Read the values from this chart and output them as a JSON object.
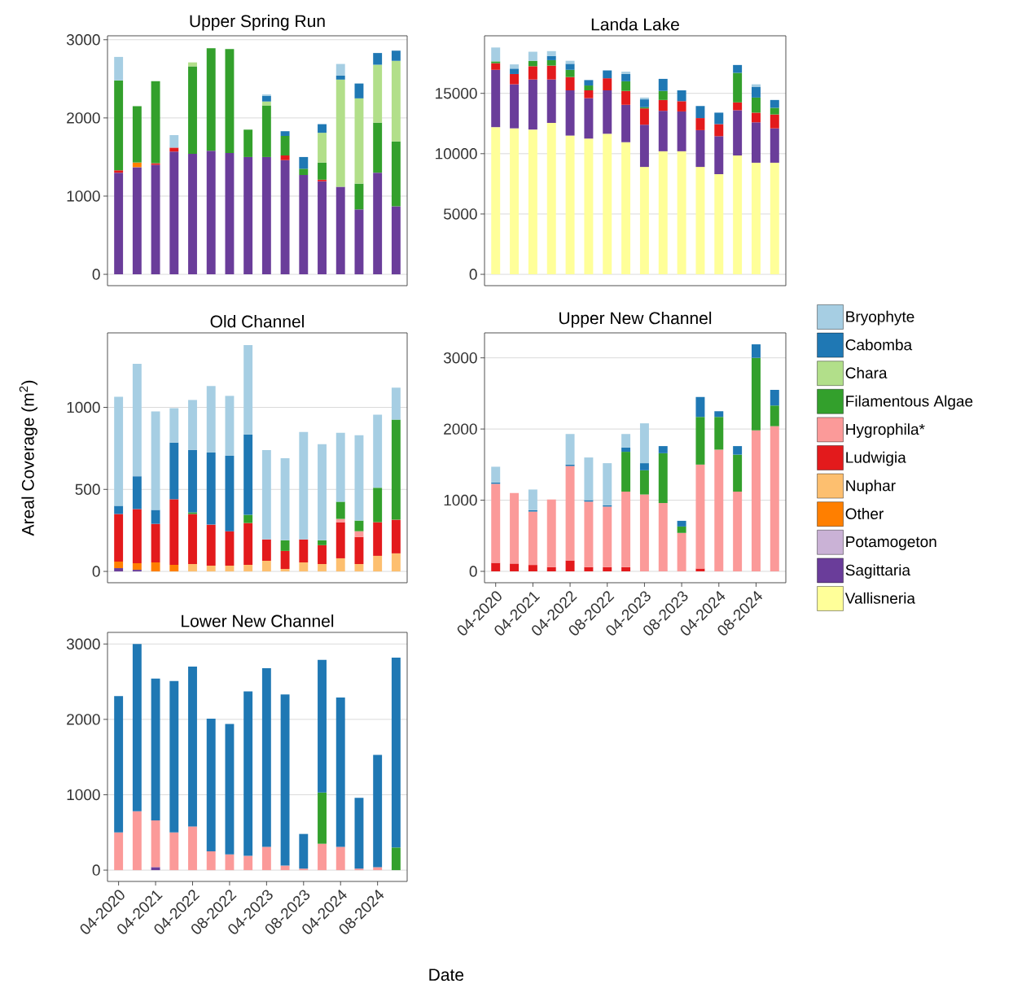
{
  "chart_data": [
    {
      "type": "bar",
      "title": "Upper Spring Run",
      "stacked": true,
      "grid": "y",
      "tick_labels": "y",
      "categories": [
        null,
        null,
        null,
        null,
        null,
        null,
        null,
        null,
        null,
        null,
        null,
        null,
        null,
        null,
        null,
        null
      ],
      "ylim": [
        -145,
        3050
      ],
      "yticks": [
        0,
        1000,
        2000,
        3000
      ],
      "series": [
        {
          "color": "#6a3d9a",
          "values": [
            1300,
            1370,
            1400,
            1570,
            1540,
            1580,
            1550,
            1500,
            1500,
            1460,
            1270,
            1190,
            1120,
            830,
            1300,
            870
          ]
        },
        {
          "color": "#ff7f00",
          "values": [
            null,
            60,
            null,
            null,
            null,
            null,
            null,
            null,
            null,
            null,
            null,
            null,
            null,
            null,
            null,
            null
          ]
        },
        {
          "color": "#e31a1c",
          "values": [
            30,
            null,
            20,
            50,
            null,
            null,
            null,
            null,
            null,
            60,
            null,
            20,
            null,
            null,
            null,
            null
          ]
        },
        {
          "color": "#33a02c",
          "values": [
            1150,
            720,
            1050,
            null,
            1120,
            1310,
            1330,
            350,
            660,
            250,
            80,
            220,
            null,
            330,
            640,
            830
          ]
        },
        {
          "color": "#b2df8a",
          "values": [
            null,
            null,
            null,
            null,
            50,
            null,
            null,
            null,
            50,
            null,
            null,
            380,
            1370,
            1090,
            740,
            1030
          ]
        },
        {
          "color": "#1f78b4",
          "values": [
            null,
            null,
            null,
            null,
            null,
            null,
            null,
            null,
            70,
            60,
            150,
            110,
            50,
            190,
            150,
            130
          ]
        },
        {
          "color": "#a6cee3",
          "values": [
            300,
            null,
            null,
            160,
            null,
            null,
            null,
            null,
            20,
            null,
            null,
            null,
            150,
            null,
            null,
            null
          ]
        }
      ]
    },
    {
      "type": "bar",
      "title": "Landa Lake",
      "stacked": true,
      "grid": "y",
      "tick_labels": "y",
      "categories": [
        null,
        null,
        null,
        null,
        null,
        null,
        null,
        null,
        null,
        null,
        null,
        null,
        null,
        null,
        null,
        null
      ],
      "ylim": [
        -940,
        19770
      ],
      "yticks": [
        0,
        5000,
        10000,
        15000
      ],
      "series": [
        {
          "color": "#ffff99",
          "values": [
            12200,
            12100,
            12000,
            12550,
            11500,
            11250,
            11650,
            10950,
            8900,
            10200,
            10200,
            8900,
            8300,
            9850,
            9250,
            9250
          ]
        },
        {
          "color": "#6a3d9a",
          "values": [
            4750,
            3650,
            4150,
            3600,
            3750,
            3350,
            3600,
            3100,
            3500,
            3350,
            3300,
            3050,
            3150,
            3750,
            3350,
            2850
          ]
        },
        {
          "color": "#e31a1c",
          "values": [
            550,
            850,
            1100,
            1150,
            1100,
            650,
            1000,
            1150,
            1350,
            900,
            850,
            1000,
            1000,
            650,
            800,
            1150
          ]
        },
        {
          "color": "#33a02c",
          "values": [
            150,
            null,
            450,
            450,
            600,
            400,
            null,
            800,
            100,
            750,
            null,
            null,
            null,
            2450,
            1250,
            550
          ]
        },
        {
          "color": "#1f78b4",
          "values": [
            null,
            450,
            null,
            350,
            500,
            450,
            650,
            600,
            650,
            1000,
            900,
            1000,
            950,
            650,
            900,
            650
          ]
        },
        {
          "color": "#a6cee3",
          "values": [
            1150,
            350,
            750,
            400,
            250,
            null,
            null,
            200,
            150,
            null,
            null,
            null,
            null,
            null,
            200,
            null
          ]
        }
      ]
    },
    {
      "type": "bar",
      "title": "Old Channel",
      "ylabel": "Areal Coverage (m$^{2}$)",
      "stacked": true,
      "grid": "y",
      "tick_labels": "y",
      "categories": [
        null,
        null,
        null,
        null,
        null,
        null,
        null,
        null,
        null,
        null,
        null,
        null,
        null,
        null,
        null,
        null
      ],
      "ylim": [
        -69,
        1454
      ],
      "yticks": [
        0,
        500,
        1000
      ],
      "series": [
        {
          "color": "#6a3d9a",
          "values": [
            20,
            10,
            null,
            null,
            null,
            null,
            null,
            null,
            null,
            null,
            null,
            null,
            null,
            null,
            null,
            null
          ]
        },
        {
          "color": "#ff7f00",
          "values": [
            40,
            40,
            55,
            40,
            null,
            null,
            null,
            null,
            null,
            null,
            null,
            null,
            null,
            null,
            null,
            null
          ]
        },
        {
          "color": "#fdbf6f",
          "values": [
            null,
            null,
            null,
            null,
            45,
            35,
            35,
            40,
            65,
            15,
            55,
            45,
            80,
            45,
            95,
            110
          ]
        },
        {
          "color": "#e31a1c",
          "values": [
            290,
            330,
            235,
            400,
            305,
            250,
            210,
            255,
            130,
            110,
            140,
            115,
            220,
            165,
            205,
            205
          ]
        },
        {
          "color": "#fb9a99",
          "values": [
            null,
            null,
            null,
            null,
            null,
            null,
            null,
            null,
            null,
            null,
            null,
            null,
            20,
            35,
            null,
            null
          ]
        },
        {
          "color": "#33a02c",
          "values": [
            null,
            null,
            null,
            null,
            10,
            null,
            null,
            50,
            null,
            65,
            null,
            30,
            105,
            65,
            210,
            610
          ]
        },
        {
          "color": "#1f78b4",
          "values": [
            50,
            200,
            85,
            345,
            380,
            440,
            460,
            490,
            null,
            null,
            null,
            null,
            null,
            null,
            null,
            null
          ]
        },
        {
          "color": "#a6cee3",
          "values": [
            665,
            685,
            600,
            210,
            305,
            405,
            365,
            545,
            545,
            500,
            655,
            585,
            420,
            520,
            445,
            195
          ]
        }
      ]
    },
    {
      "type": "bar",
      "title": "Upper New Channel",
      "stacked": true,
      "grid": "y",
      "legend": "right",
      "categories": [
        "04-2020",
        null,
        "04-2021",
        null,
        "04-2022",
        null,
        "08-2022",
        null,
        "04-2023",
        null,
        "08-2023",
        null,
        "04-2024",
        null,
        "08-2024",
        null
      ],
      "ylim": [
        -160,
        3351
      ],
      "yticks": [
        0,
        1000,
        2000,
        3000
      ],
      "series": [
        {
          "name": "Vallisneria",
          "color": "#ffff99",
          "values": [
            null,
            null,
            null,
            null,
            null,
            null,
            null,
            null,
            null,
            null,
            null,
            null,
            null,
            null,
            null,
            null
          ]
        },
        {
          "name": "Sagittaria",
          "color": "#6a3d9a",
          "values": [
            null,
            null,
            null,
            null,
            null,
            null,
            null,
            null,
            null,
            null,
            null,
            null,
            null,
            null,
            null,
            null
          ]
        },
        {
          "name": "Potamogeton",
          "color": "#cab2d6",
          "values": [
            null,
            null,
            null,
            null,
            null,
            null,
            null,
            null,
            null,
            null,
            null,
            null,
            null,
            null,
            null,
            null
          ]
        },
        {
          "name": "Other",
          "color": "#ff7f00",
          "values": [
            null,
            null,
            null,
            null,
            null,
            null,
            null,
            null,
            null,
            null,
            null,
            null,
            null,
            null,
            null,
            null
          ]
        },
        {
          "name": "Nuphar",
          "color": "#fdbf6f",
          "values": [
            null,
            null,
            null,
            null,
            null,
            null,
            null,
            null,
            null,
            null,
            null,
            null,
            null,
            null,
            null,
            null
          ]
        },
        {
          "name": "Ludwigia",
          "color": "#e31a1c",
          "values": [
            120,
            110,
            90,
            60,
            150,
            60,
            60,
            60,
            null,
            null,
            null,
            40,
            null,
            null,
            null,
            null
          ]
        },
        {
          "name": "Hygrophila*",
          "color": "#fb9a99",
          "values": [
            1110,
            990,
            750,
            950,
            1330,
            920,
            850,
            1060,
            1080,
            960,
            540,
            1460,
            1710,
            1120,
            1980,
            2040
          ]
        },
        {
          "name": "Filamentous Algae",
          "color": "#33a02c",
          "values": [
            null,
            null,
            null,
            null,
            null,
            null,
            null,
            560,
            340,
            700,
            90,
            670,
            460,
            520,
            1020,
            290
          ]
        },
        {
          "name": "Chara",
          "color": "#b2df8a",
          "values": [
            null,
            null,
            null,
            null,
            null,
            null,
            null,
            null,
            null,
            null,
            null,
            null,
            null,
            null,
            null,
            null
          ]
        },
        {
          "name": "Cabomba",
          "color": "#1f78b4",
          "values": [
            20,
            null,
            20,
            null,
            20,
            20,
            20,
            60,
            100,
            100,
            80,
            280,
            80,
            120,
            190,
            220
          ]
        },
        {
          "name": "Bryophyte",
          "color": "#a6cee3",
          "values": [
            220,
            null,
            290,
            null,
            430,
            600,
            590,
            190,
            560,
            null,
            null,
            null,
            null,
            null,
            null,
            null
          ]
        }
      ]
    },
    {
      "type": "bar",
      "title": "Lower New Channel",
      "xlabel": "Date",
      "stacked": true,
      "grid": "y",
      "categories": [
        "04-2020",
        null,
        "04-2021",
        null,
        "04-2022",
        null,
        "08-2022",
        null,
        "04-2023",
        null,
        "08-2023",
        null,
        "04-2024",
        null,
        "08-2024",
        null
      ],
      "ylim": [
        -150,
        3154
      ],
      "yticks": [
        0,
        1000,
        2000,
        3000
      ],
      "series": [
        {
          "color": "#6a3d9a",
          "values": [
            null,
            null,
            40,
            null,
            null,
            null,
            null,
            null,
            null,
            null,
            null,
            null,
            null,
            null,
            null,
            null
          ]
        },
        {
          "color": "#fb9a99",
          "values": [
            500,
            780,
            620,
            500,
            580,
            250,
            210,
            190,
            310,
            60,
            20,
            350,
            310,
            20,
            40,
            null
          ]
        },
        {
          "color": "#33a02c",
          "values": [
            null,
            null,
            null,
            null,
            null,
            null,
            null,
            null,
            null,
            null,
            null,
            680,
            null,
            null,
            null,
            300
          ]
        },
        {
          "color": "#1f78b4",
          "values": [
            1810,
            2220,
            1880,
            2010,
            2120,
            1760,
            1730,
            2180,
            2370,
            2270,
            460,
            1760,
            1980,
            940,
            1490,
            2520
          ]
        }
      ]
    }
  ]
}
